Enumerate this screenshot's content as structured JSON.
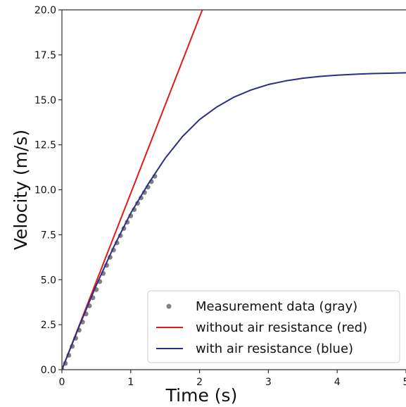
{
  "chart_data": {
    "type": "line",
    "xlabel": "Time (s)",
    "ylabel": "Velocity (m/s)",
    "xlim": [
      0,
      5
    ],
    "ylim": [
      0,
      20
    ],
    "x_ticks": [
      "0",
      "1",
      "2",
      "3",
      "4",
      "5"
    ],
    "y_ticks": [
      "0.0",
      "2.5",
      "5.0",
      "7.5",
      "10.0",
      "12.5",
      "15.0",
      "17.5",
      "20.0"
    ],
    "grid": false,
    "legend_position": "bottom-right",
    "series": [
      {
        "name": "Measurement data (gray)",
        "kind": "scatter",
        "color": "#808080",
        "x": [
          0.0,
          0.05,
          0.1,
          0.15,
          0.2,
          0.25,
          0.3,
          0.35,
          0.4,
          0.45,
          0.5,
          0.55,
          0.6,
          0.65,
          0.7,
          0.75,
          0.8,
          0.85,
          0.9,
          0.95,
          1.0,
          1.05,
          1.1,
          1.15,
          1.2,
          1.25,
          1.3,
          1.35
        ],
        "y": [
          0.0,
          0.35,
          0.8,
          1.3,
          1.75,
          2.2,
          2.65,
          3.1,
          3.55,
          4.0,
          4.45,
          4.9,
          5.35,
          5.8,
          6.25,
          6.65,
          7.05,
          7.45,
          7.85,
          8.2,
          8.55,
          8.9,
          9.25,
          9.55,
          9.85,
          10.15,
          10.45,
          10.75
        ]
      },
      {
        "name": "without air resistance (red)",
        "kind": "line",
        "color": "#e31a1c",
        "x": [
          0,
          2.04
        ],
        "y": [
          0,
          20.0
        ]
      },
      {
        "name": "with air resistance (blue)",
        "kind": "line",
        "color": "#2b2f85",
        "x": [
          0,
          0.25,
          0.5,
          0.75,
          1.0,
          1.25,
          1.5,
          1.75,
          2.0,
          2.25,
          2.5,
          2.75,
          3.0,
          3.25,
          3.5,
          3.75,
          4.0,
          4.25,
          4.5,
          4.75,
          5.0
        ],
        "y": [
          0,
          2.4,
          4.7,
          6.8,
          8.7,
          10.3,
          11.75,
          12.95,
          13.9,
          14.6,
          15.15,
          15.55,
          15.85,
          16.05,
          16.2,
          16.3,
          16.37,
          16.42,
          16.46,
          16.48,
          16.5
        ]
      }
    ]
  }
}
